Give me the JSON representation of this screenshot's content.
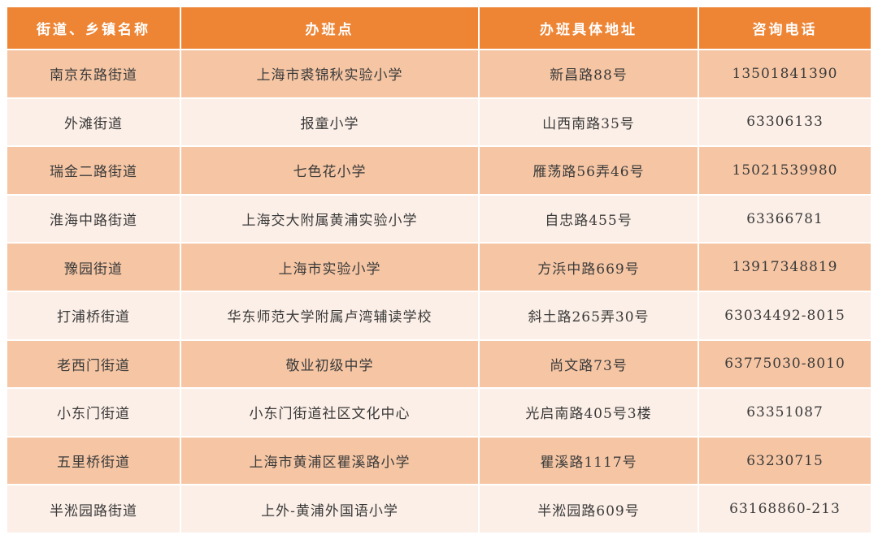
{
  "colors": {
    "header": "#ee8535",
    "row_dark": "#f6c6a4",
    "row_light": "#fcefe7"
  },
  "headers": [
    "街道、乡镇名称",
    "办班点",
    "办班具体地址",
    "咨询电话"
  ],
  "rows": [
    [
      "南京东路街道",
      "上海市裘锦秋实验小学",
      "新昌路88号",
      "13501841390"
    ],
    [
      "外滩街道",
      "报童小学",
      "山西南路35号",
      "63306133"
    ],
    [
      "瑞金二路街道",
      "七色花小学",
      "雁荡路56弄46号",
      "15021539980"
    ],
    [
      "淮海中路街道",
      "上海交大附属黄浦实验小学",
      "自忠路455号",
      "63366781"
    ],
    [
      "豫园街道",
      "上海市实验小学",
      "方浜中路669号",
      "13917348819"
    ],
    [
      "打浦桥街道",
      "华东师范大学附属卢湾辅读学校",
      "斜土路265弄30号",
      "63034492-8015"
    ],
    [
      "老西门街道",
      "敬业初级中学",
      "尚文路73号",
      "63775030-8010"
    ],
    [
      "小东门街道",
      "小东门街道社区文化中心",
      "光启南路405号3楼",
      "63351087"
    ],
    [
      "五里桥街道",
      "上海市黄浦区瞿溪路小学",
      "瞿溪路1117号",
      "63230715"
    ],
    [
      "半淞园路街道",
      "上外-黄浦外国语小学",
      "半淞园路609号",
      "63168860-213"
    ]
  ]
}
